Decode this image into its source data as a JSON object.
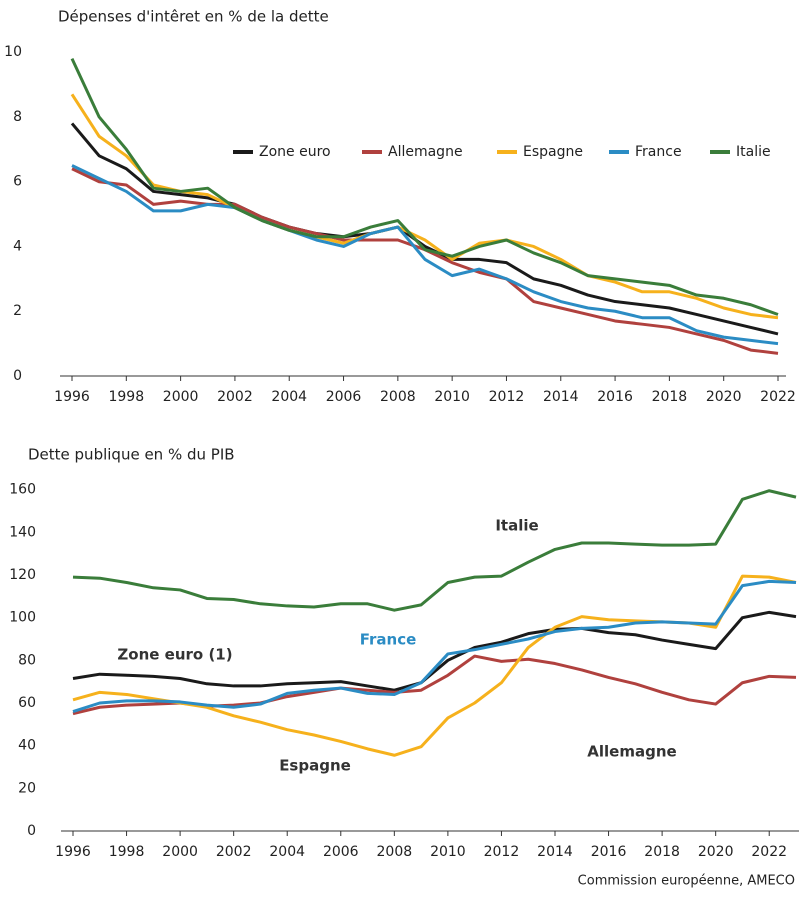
{
  "chart_data": [
    {
      "type": "line",
      "title": "Dépenses d'intêret en % de la dette",
      "x": [
        1996,
        1997,
        1998,
        1999,
        2000,
        2001,
        2002,
        2003,
        2004,
        2005,
        2006,
        2007,
        2008,
        2009,
        2010,
        2011,
        2012,
        2013,
        2014,
        2015,
        2016,
        2017,
        2018,
        2019,
        2020,
        2021,
        2022
      ],
      "xlim": [
        1996,
        2022
      ],
      "xticks": [
        1996,
        1998,
        2000,
        2002,
        2004,
        2006,
        2008,
        2010,
        2012,
        2014,
        2016,
        2018,
        2020,
        2022
      ],
      "ylim": [
        0,
        10.5
      ],
      "yticks": [
        0,
        2,
        4,
        6,
        8,
        10
      ],
      "grid": false,
      "legend": "upper right",
      "series": [
        {
          "name": "Zone euro",
          "color": "#1a1a1a",
          "values": [
            7.8,
            6.8,
            6.4,
            5.7,
            5.6,
            5.5,
            5.3,
            4.9,
            4.6,
            4.4,
            4.3,
            4.4,
            4.6,
            4.0,
            3.6,
            3.6,
            3.5,
            3.0,
            2.8,
            2.5,
            2.3,
            2.2,
            2.1,
            1.9,
            1.7,
            1.5,
            1.3
          ]
        },
        {
          "name": "Allemagne",
          "color": "#b0413e",
          "values": [
            6.4,
            6.0,
            5.9,
            5.3,
            5.4,
            5.3,
            5.3,
            4.9,
            4.6,
            4.4,
            4.2,
            4.2,
            4.2,
            3.9,
            3.5,
            3.2,
            3.0,
            2.3,
            2.1,
            1.9,
            1.7,
            1.6,
            1.5,
            1.3,
            1.1,
            0.8,
            0.7
          ]
        },
        {
          "name": "Espagne",
          "color": "#f6b11c",
          "values": [
            8.7,
            7.4,
            6.8,
            5.9,
            5.7,
            5.6,
            5.2,
            4.8,
            4.5,
            4.3,
            4.1,
            4.4,
            4.6,
            4.2,
            3.6,
            4.1,
            4.2,
            4.0,
            3.6,
            3.1,
            2.9,
            2.6,
            2.6,
            2.4,
            2.1,
            1.9,
            1.8
          ]
        },
        {
          "name": "France",
          "color": "#2b8cc4",
          "values": [
            6.5,
            6.1,
            5.7,
            5.1,
            5.1,
            5.3,
            5.2,
            4.8,
            4.5,
            4.2,
            4.0,
            4.4,
            4.6,
            3.6,
            3.1,
            3.3,
            3.0,
            2.6,
            2.3,
            2.1,
            2.0,
            1.8,
            1.8,
            1.4,
            1.2,
            1.1,
            1.0
          ]
        },
        {
          "name": "Italie",
          "color": "#3a7d3a",
          "values": [
            9.8,
            8.0,
            7.0,
            5.8,
            5.7,
            5.8,
            5.2,
            4.8,
            4.5,
            4.3,
            4.3,
            4.6,
            4.8,
            3.9,
            3.7,
            4.0,
            4.2,
            3.8,
            3.5,
            3.1,
            3.0,
            2.9,
            2.8,
            2.5,
            2.4,
            2.2,
            1.9
          ]
        }
      ]
    },
    {
      "type": "line",
      "title": "Dette publique en % du PIB",
      "x": [
        1996,
        1997,
        1998,
        1999,
        2000,
        2001,
        2002,
        2003,
        2004,
        2005,
        2006,
        2007,
        2008,
        2009,
        2010,
        2011,
        2012,
        2013,
        2014,
        2015,
        2016,
        2017,
        2018,
        2019,
        2020,
        2021,
        2022,
        2023
      ],
      "xlim": [
        1996,
        2023
      ],
      "xticks": [
        1996,
        1998,
        2000,
        2002,
        2004,
        2006,
        2008,
        2010,
        2012,
        2014,
        2016,
        2018,
        2020,
        2022
      ],
      "ylim": [
        0,
        165
      ],
      "yticks": [
        0,
        20,
        40,
        60,
        80,
        100,
        120,
        140,
        160
      ],
      "grid": false,
      "legend": "labels",
      "series": [
        {
          "name": "Zone euro (1)",
          "color": "#1a1a1a",
          "values": [
            71.5,
            73.5,
            73,
            72.5,
            71.5,
            69,
            68,
            68,
            69,
            69.5,
            70,
            68,
            66,
            69.5,
            80,
            86,
            88.5,
            92.5,
            94.5,
            95,
            93,
            92,
            89.5,
            87.5,
            85.5,
            100,
            102.5,
            100.5
          ]
        },
        {
          "name": "Allemagne",
          "color": "#b0413e",
          "values": [
            55,
            58,
            59,
            59.5,
            60,
            58.5,
            59,
            60,
            63,
            65,
            67,
            66,
            65,
            66,
            73,
            82,
            79.5,
            80.5,
            78.5,
            75.5,
            72,
            69,
            65,
            61.5,
            59.5,
            69.5,
            72.5,
            72
          ]
        },
        {
          "name": "Espagne",
          "color": "#f6b11c",
          "values": [
            61.5,
            65,
            64,
            62,
            60,
            58,
            54,
            51,
            47.5,
            45,
            42,
            38.5,
            35.5,
            39.5,
            53,
            60,
            69.5,
            86,
            95.5,
            100.5,
            99,
            98.5,
            98,
            97.5,
            95.5,
            119.5,
            119,
            116.5
          ]
        },
        {
          "name": "France",
          "color": "#2b8cc4",
          "values": [
            56,
            60,
            61,
            61,
            60.5,
            59,
            58,
            59.5,
            64.5,
            66,
            67,
            64.5,
            64,
            69.5,
            83,
            85,
            87.5,
            90,
            93.5,
            95,
            95.5,
            97.5,
            98,
            97.5,
            97,
            115,
            117,
            116.5
          ]
        },
        {
          "name": "Italie",
          "color": "#3a7d3a",
          "values": [
            119,
            118.5,
            116.5,
            114,
            113,
            109,
            108.5,
            106.5,
            105.5,
            105,
            106.5,
            106.5,
            103.5,
            106,
            116.5,
            119,
            119.5,
            126,
            132,
            135,
            135,
            134.5,
            134,
            134,
            134.5,
            155.5,
            159.5,
            156.5
          ]
        }
      ]
    }
  ],
  "source": "Commission européenne, AMECO"
}
